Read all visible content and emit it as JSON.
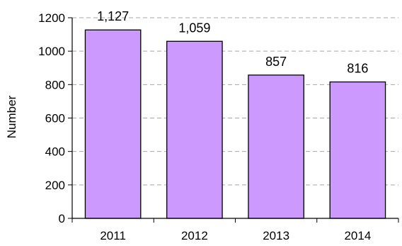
{
  "chart_data": {
    "type": "bar",
    "categories": [
      "2011",
      "2012",
      "2013",
      "2014"
    ],
    "values": [
      1127,
      1059,
      857,
      816
    ],
    "value_labels": [
      "1,127",
      "1,059",
      "857",
      "816"
    ],
    "ylabel": "Number",
    "ylim": [
      0,
      1200
    ],
    "yticks": [
      0,
      200,
      400,
      600,
      800,
      1000,
      1200
    ],
    "grid": true,
    "legend": "none",
    "bar_color": "#cc99ff",
    "bar_edge_color": "#000000",
    "grid_color": "#a6a6a6"
  }
}
